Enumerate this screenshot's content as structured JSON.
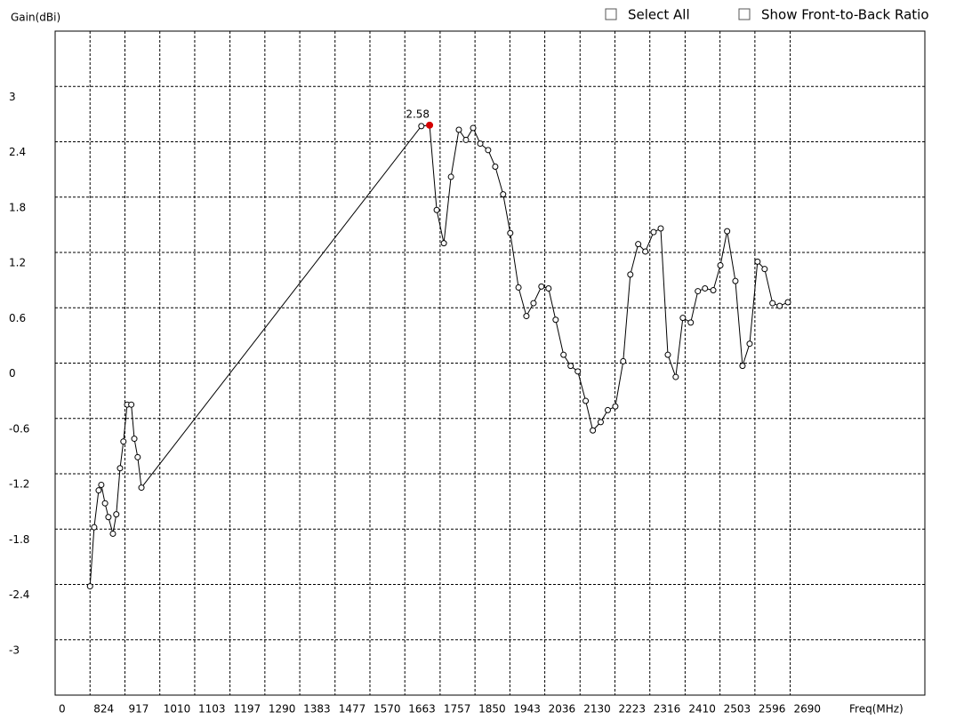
{
  "chart_data": {
    "type": "line",
    "y_axis_label": "Gain(dBi)",
    "x_axis_label": "Freq(MHz)",
    "x_origin_label": "0",
    "controls": [
      "Select All",
      "Show Front-to-Back Ratio"
    ],
    "xlim": [
      731,
      3049
    ],
    "ylim": [
      -3.6,
      3.6
    ],
    "xticks": [
      824,
      917,
      1010,
      1103,
      1197,
      1290,
      1383,
      1477,
      1570,
      1663,
      1757,
      1850,
      1943,
      2036,
      2130,
      2223,
      2316,
      2410,
      2503,
      2596,
      2690
    ],
    "yticks": [
      3,
      2.4,
      1.8,
      1.2,
      0.6,
      0,
      -0.6,
      -1.2,
      -1.8,
      -2.4,
      -3
    ],
    "grid": true,
    "color": "#000000",
    "x": [
      824,
      835,
      847,
      854,
      864,
      873,
      885,
      894,
      904,
      913,
      923,
      934,
      942,
      951,
      961,
      1707,
      1729,
      1748,
      1767,
      1786,
      1807,
      1826,
      1845,
      1864,
      1885,
      1904,
      1925,
      1944,
      1966,
      1987,
      2006,
      2027,
      2046,
      2065,
      2086,
      2105,
      2124,
      2145,
      2164,
      2185,
      2204,
      2224,
      2245,
      2264,
      2285,
      2304,
      2326,
      2345,
      2364,
      2385,
      2404,
      2425,
      2444,
      2463,
      2485,
      2504,
      2522,
      2544,
      2563,
      2582,
      2603,
      2622,
      2643,
      2662,
      2684
    ],
    "values": [
      -2.42,
      -1.78,
      -1.38,
      -1.32,
      -1.52,
      -1.67,
      -1.85,
      -1.64,
      -1.14,
      -0.85,
      -0.45,
      -0.45,
      -0.82,
      -1.02,
      -1.35,
      2.57,
      2.58,
      1.66,
      1.3,
      2.02,
      2.53,
      2.42,
      2.55,
      2.38,
      2.31,
      2.13,
      1.83,
      1.41,
      0.82,
      0.51,
      0.65,
      0.83,
      0.81,
      0.47,
      0.09,
      -0.03,
      -0.09,
      -0.41,
      -0.73,
      -0.64,
      -0.51,
      -0.47,
      0.02,
      0.96,
      1.29,
      1.21,
      1.42,
      1.46,
      0.09,
      -0.15,
      0.49,
      0.44,
      0.78,
      0.81,
      0.79,
      1.06,
      1.43,
      0.89,
      -0.03,
      0.21,
      1.1,
      1.02,
      0.65,
      0.62,
      0.66
    ],
    "highlight": {
      "index": 16,
      "label": "2.58",
      "color": "#d40000"
    }
  }
}
